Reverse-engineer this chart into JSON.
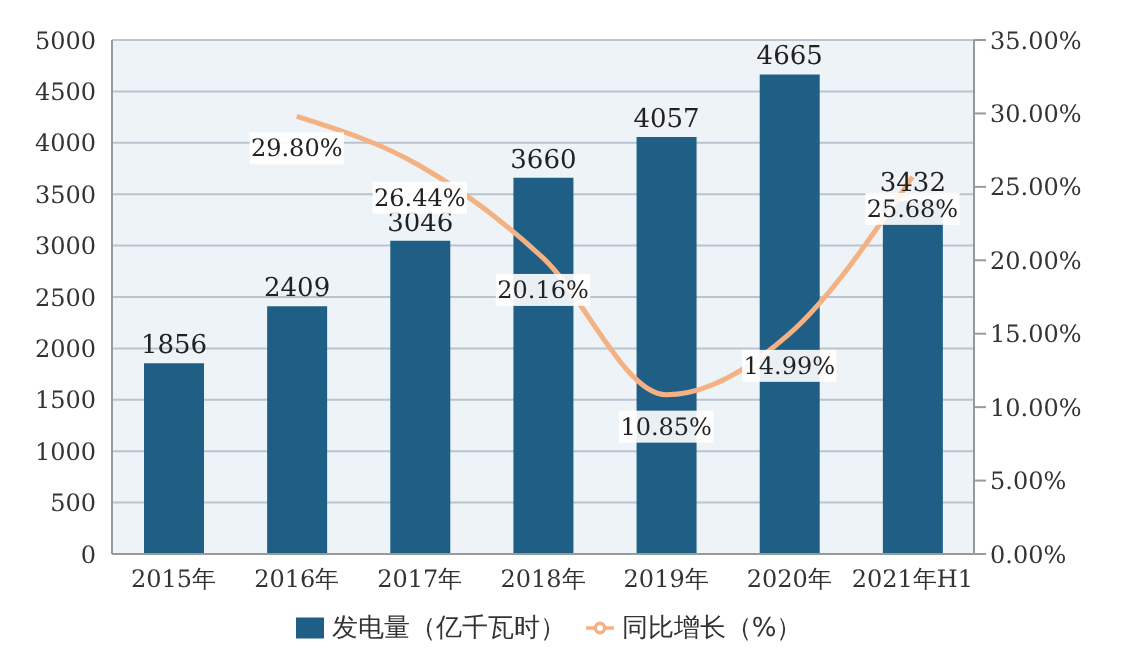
{
  "chart_data": {
    "type": "bar",
    "categories": [
      "2015年",
      "2016年",
      "2017年",
      "2018年",
      "2019年",
      "2020年",
      "2021年H1"
    ],
    "series": [
      {
        "name": "发电量（亿千瓦时）",
        "color": "#1f5f85",
        "values": [
          1856,
          2409,
          3046,
          3660,
          4057,
          4665,
          3432
        ]
      },
      {
        "name": "同比增长（%）",
        "type": "line",
        "axis": "y2",
        "color": "#f4b183",
        "values": [
          null,
          29.8,
          26.44,
          20.16,
          10.85,
          14.99,
          25.68
        ],
        "value_labels": [
          null,
          "29.80%",
          "26.44%",
          "20.16%",
          "10.85%",
          "14.99%",
          "25.68%"
        ]
      }
    ],
    "ylim": [
      0,
      5000
    ],
    "yticks": [
      0,
      500,
      1000,
      1500,
      2000,
      2500,
      3000,
      3500,
      4000,
      4500,
      5000
    ],
    "y2lim": [
      0,
      35
    ],
    "y2ticks": [
      {
        "value": 0,
        "label": "0.00%"
      },
      {
        "value": 5,
        "label": "5.00%"
      },
      {
        "value": 10,
        "label": "10.00%"
      },
      {
        "value": 15,
        "label": "15.00%"
      },
      {
        "value": 20,
        "label": "20.00%"
      },
      {
        "value": 25,
        "label": "25.00%"
      },
      {
        "value": 30,
        "label": "30.00%"
      },
      {
        "value": 35,
        "label": "35.00%"
      }
    ],
    "data_labels": true,
    "grid": "y",
    "legend": "bottom",
    "marker": "none"
  }
}
